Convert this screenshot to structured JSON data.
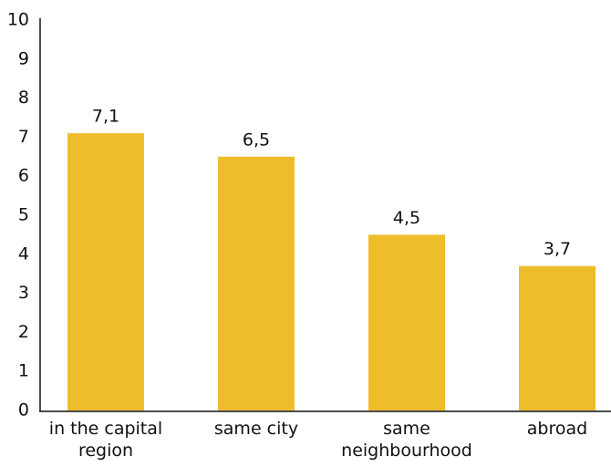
{
  "chart_data": {
    "type": "bar",
    "categories": [
      "in the capital region",
      "same city",
      "same neighbourhood",
      "abroad"
    ],
    "values": [
      7.1,
      6.5,
      4.5,
      3.7
    ],
    "value_labels": [
      "7,1",
      "6,5",
      "4,5",
      "3,7"
    ],
    "color": "#eebd2b",
    "ylim": [
      0,
      10
    ],
    "yticks": [
      0,
      1,
      2,
      3,
      4,
      5,
      6,
      7,
      8,
      9,
      10
    ],
    "grid": false
  }
}
